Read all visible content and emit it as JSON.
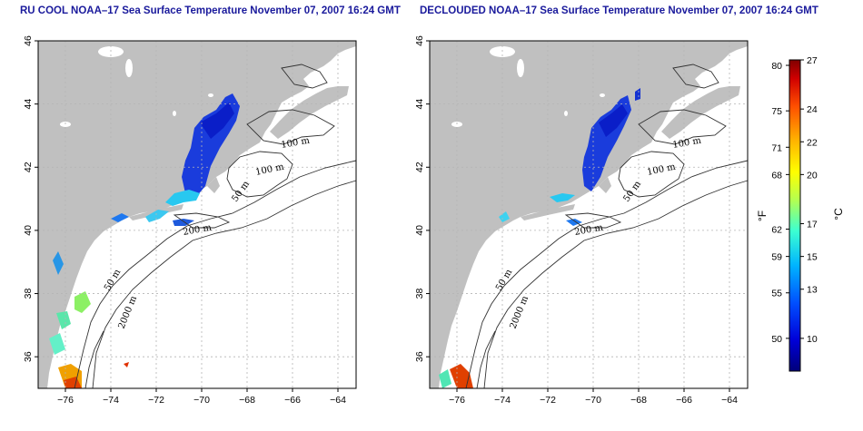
{
  "panels": [
    {
      "id": "left",
      "title": "RU COOL NOAA–17 Sea Surface Temperature November 07, 2007 16:24 GMT"
    },
    {
      "id": "right",
      "title": "DECLOUDED NOAA–17 Sea Surface Temperature November 07, 2007 16:24 GMT"
    }
  ],
  "axes": {
    "x_ticks": [
      "−76",
      "−74",
      "−72",
      "−70",
      "−68",
      "−66",
      "−64"
    ],
    "y_ticks": [
      "36",
      "38",
      "40",
      "42",
      "44",
      "46"
    ],
    "x_values": [
      -76,
      -74,
      -72,
      -70,
      -68,
      -66,
      -64
    ],
    "y_values": [
      36,
      38,
      40,
      42,
      44,
      46
    ],
    "xlim": [
      -77.2,
      -63.2
    ],
    "ylim": [
      35,
      46
    ]
  },
  "contour_labels": {
    "c100a": "100 m",
    "c100b": "100 m",
    "c50a": "50 m",
    "c200": "200 m",
    "c50b": "50 m",
    "c2000": "2000 m"
  },
  "colorbar": {
    "fahrenheit_label": "°F",
    "celsius_label": "°C",
    "fahrenheit_ticks": [
      "80",
      "75",
      "71",
      "68",
      "62",
      "59",
      "55",
      "50"
    ],
    "celsius_ticks": [
      "27",
      "24",
      "22",
      "20",
      "17",
      "15",
      "13",
      "10"
    ],
    "celsius_values": [
      27,
      24,
      22,
      20,
      17,
      15,
      13,
      10
    ],
    "fahrenheit_values": [
      80,
      75,
      71,
      68,
      62,
      59,
      55,
      50
    ],
    "range_c": [
      8,
      27
    ],
    "colors": [
      "#00007a",
      "#0000d8",
      "#0050ff",
      "#00b4ff",
      "#3cffd2",
      "#b4ff50",
      "#ffff00",
      "#ffb400",
      "#ff5000",
      "#d00000",
      "#800000"
    ]
  },
  "colors": {
    "land": "#c0c0c0",
    "ocean": "#ffffff",
    "title": "#1a1a9c",
    "grid": "#b4b4b4"
  }
}
